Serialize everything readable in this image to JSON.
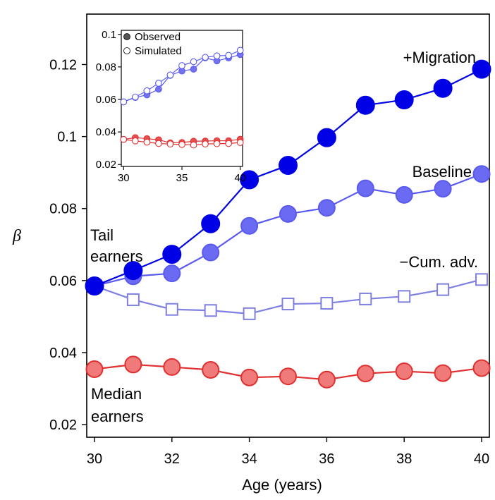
{
  "chart_data": [
    {
      "type": "line",
      "title": "",
      "xlabel": "Age (years)",
      "ylabel": "β",
      "xlim": [
        29.8,
        40.2
      ],
      "ylim": [
        0.0165,
        0.134
      ],
      "x_ticks": [
        30,
        32,
        34,
        36,
        38,
        40
      ],
      "x_tick_labels": [
        "30",
        "32",
        "34",
        "36",
        "38",
        "40"
      ],
      "y_ticks": [
        0.02,
        0.04,
        0.06,
        0.08,
        0.1,
        0.12
      ],
      "y_tick_labels": [
        "0.02",
        "0.04",
        "0.06",
        "0.08",
        "0.1",
        "0.12"
      ],
      "grid": false,
      "x": [
        30,
        31,
        32,
        33,
        34,
        35,
        36,
        37,
        38,
        39,
        40
      ],
      "series": [
        {
          "name": "+Migration",
          "color": "#0000e6",
          "marker": "circle-filled",
          "values": [
            0.0585,
            0.0628,
            0.0673,
            0.0758,
            0.088,
            0.092,
            0.0997,
            0.1087,
            0.1102,
            0.1134,
            0.1187
          ]
        },
        {
          "name": "Baseline",
          "color": "#5a5af0",
          "marker": "circle-filled",
          "values": [
            0.0585,
            0.0612,
            0.062,
            0.0678,
            0.0752,
            0.0785,
            0.0802,
            0.0856,
            0.0838,
            0.0855,
            0.0896
          ]
        },
        {
          "name": "−Cum. adv.",
          "color": "#8080e0",
          "marker": "square-open",
          "values": [
            0.0585,
            0.0547,
            0.052,
            0.0517,
            0.0508,
            0.0535,
            0.0537,
            0.0549,
            0.0556,
            0.0575,
            0.0603
          ]
        },
        {
          "name": "",
          "color": "#e03030",
          "marker": "circle-filled",
          "values": [
            0.0354,
            0.0367,
            0.036,
            0.0352,
            0.0331,
            0.0334,
            0.0325,
            0.0342,
            0.0348,
            0.0343,
            0.0357
          ]
        }
      ],
      "annotations": [
        "Tail",
        "earners",
        "Median",
        "earners"
      ]
    },
    {
      "type": "line",
      "title": "",
      "xlim": [
        29.8,
        40.2
      ],
      "ylim": [
        0.0188,
        0.1025
      ],
      "x_ticks": [
        30,
        35,
        40
      ],
      "x_tick_labels": [
        "30",
        "35",
        "40"
      ],
      "y_ticks": [
        0.02,
        0.04,
        0.06,
        0.08,
        0.1
      ],
      "y_tick_labels": [
        "0.02",
        "0.04",
        "0.06",
        "0.08",
        "0.1"
      ],
      "grid": false,
      "legend": {
        "position": "top-left",
        "entries": [
          "Observed",
          "Simulated"
        ]
      },
      "x": [
        30,
        31,
        32,
        33,
        34,
        35,
        36,
        37,
        38,
        39,
        40
      ],
      "series": [
        {
          "name": "Observed",
          "group": "tail",
          "color": "#5a5af0",
          "fill": "filled",
          "values": [
            0.0585,
            0.0612,
            0.0628,
            0.0663,
            0.0748,
            0.0775,
            0.0786,
            0.0856,
            0.0837,
            0.0855,
            0.0876
          ]
        },
        {
          "name": "Simulated",
          "group": "tail",
          "color": "#5a5af0",
          "fill": "open",
          "values": [
            0.0585,
            0.0615,
            0.0653,
            0.07,
            0.075,
            0.0808,
            0.0832,
            0.0859,
            0.0868,
            0.0871,
            0.0902
          ]
        },
        {
          "name": "Observed",
          "group": "median",
          "color": "#e03030",
          "fill": "filled",
          "values": [
            0.0354,
            0.0365,
            0.0359,
            0.0352,
            0.0333,
            0.0335,
            0.0343,
            0.0344,
            0.0346,
            0.0346,
            0.0355
          ]
        },
        {
          "name": "Simulated",
          "group": "median",
          "color": "#e03030",
          "fill": "open",
          "values": [
            0.0354,
            0.0345,
            0.0337,
            0.0329,
            0.0326,
            0.0323,
            0.032,
            0.0326,
            0.0328,
            0.0329,
            0.0335
          ]
        }
      ]
    }
  ]
}
